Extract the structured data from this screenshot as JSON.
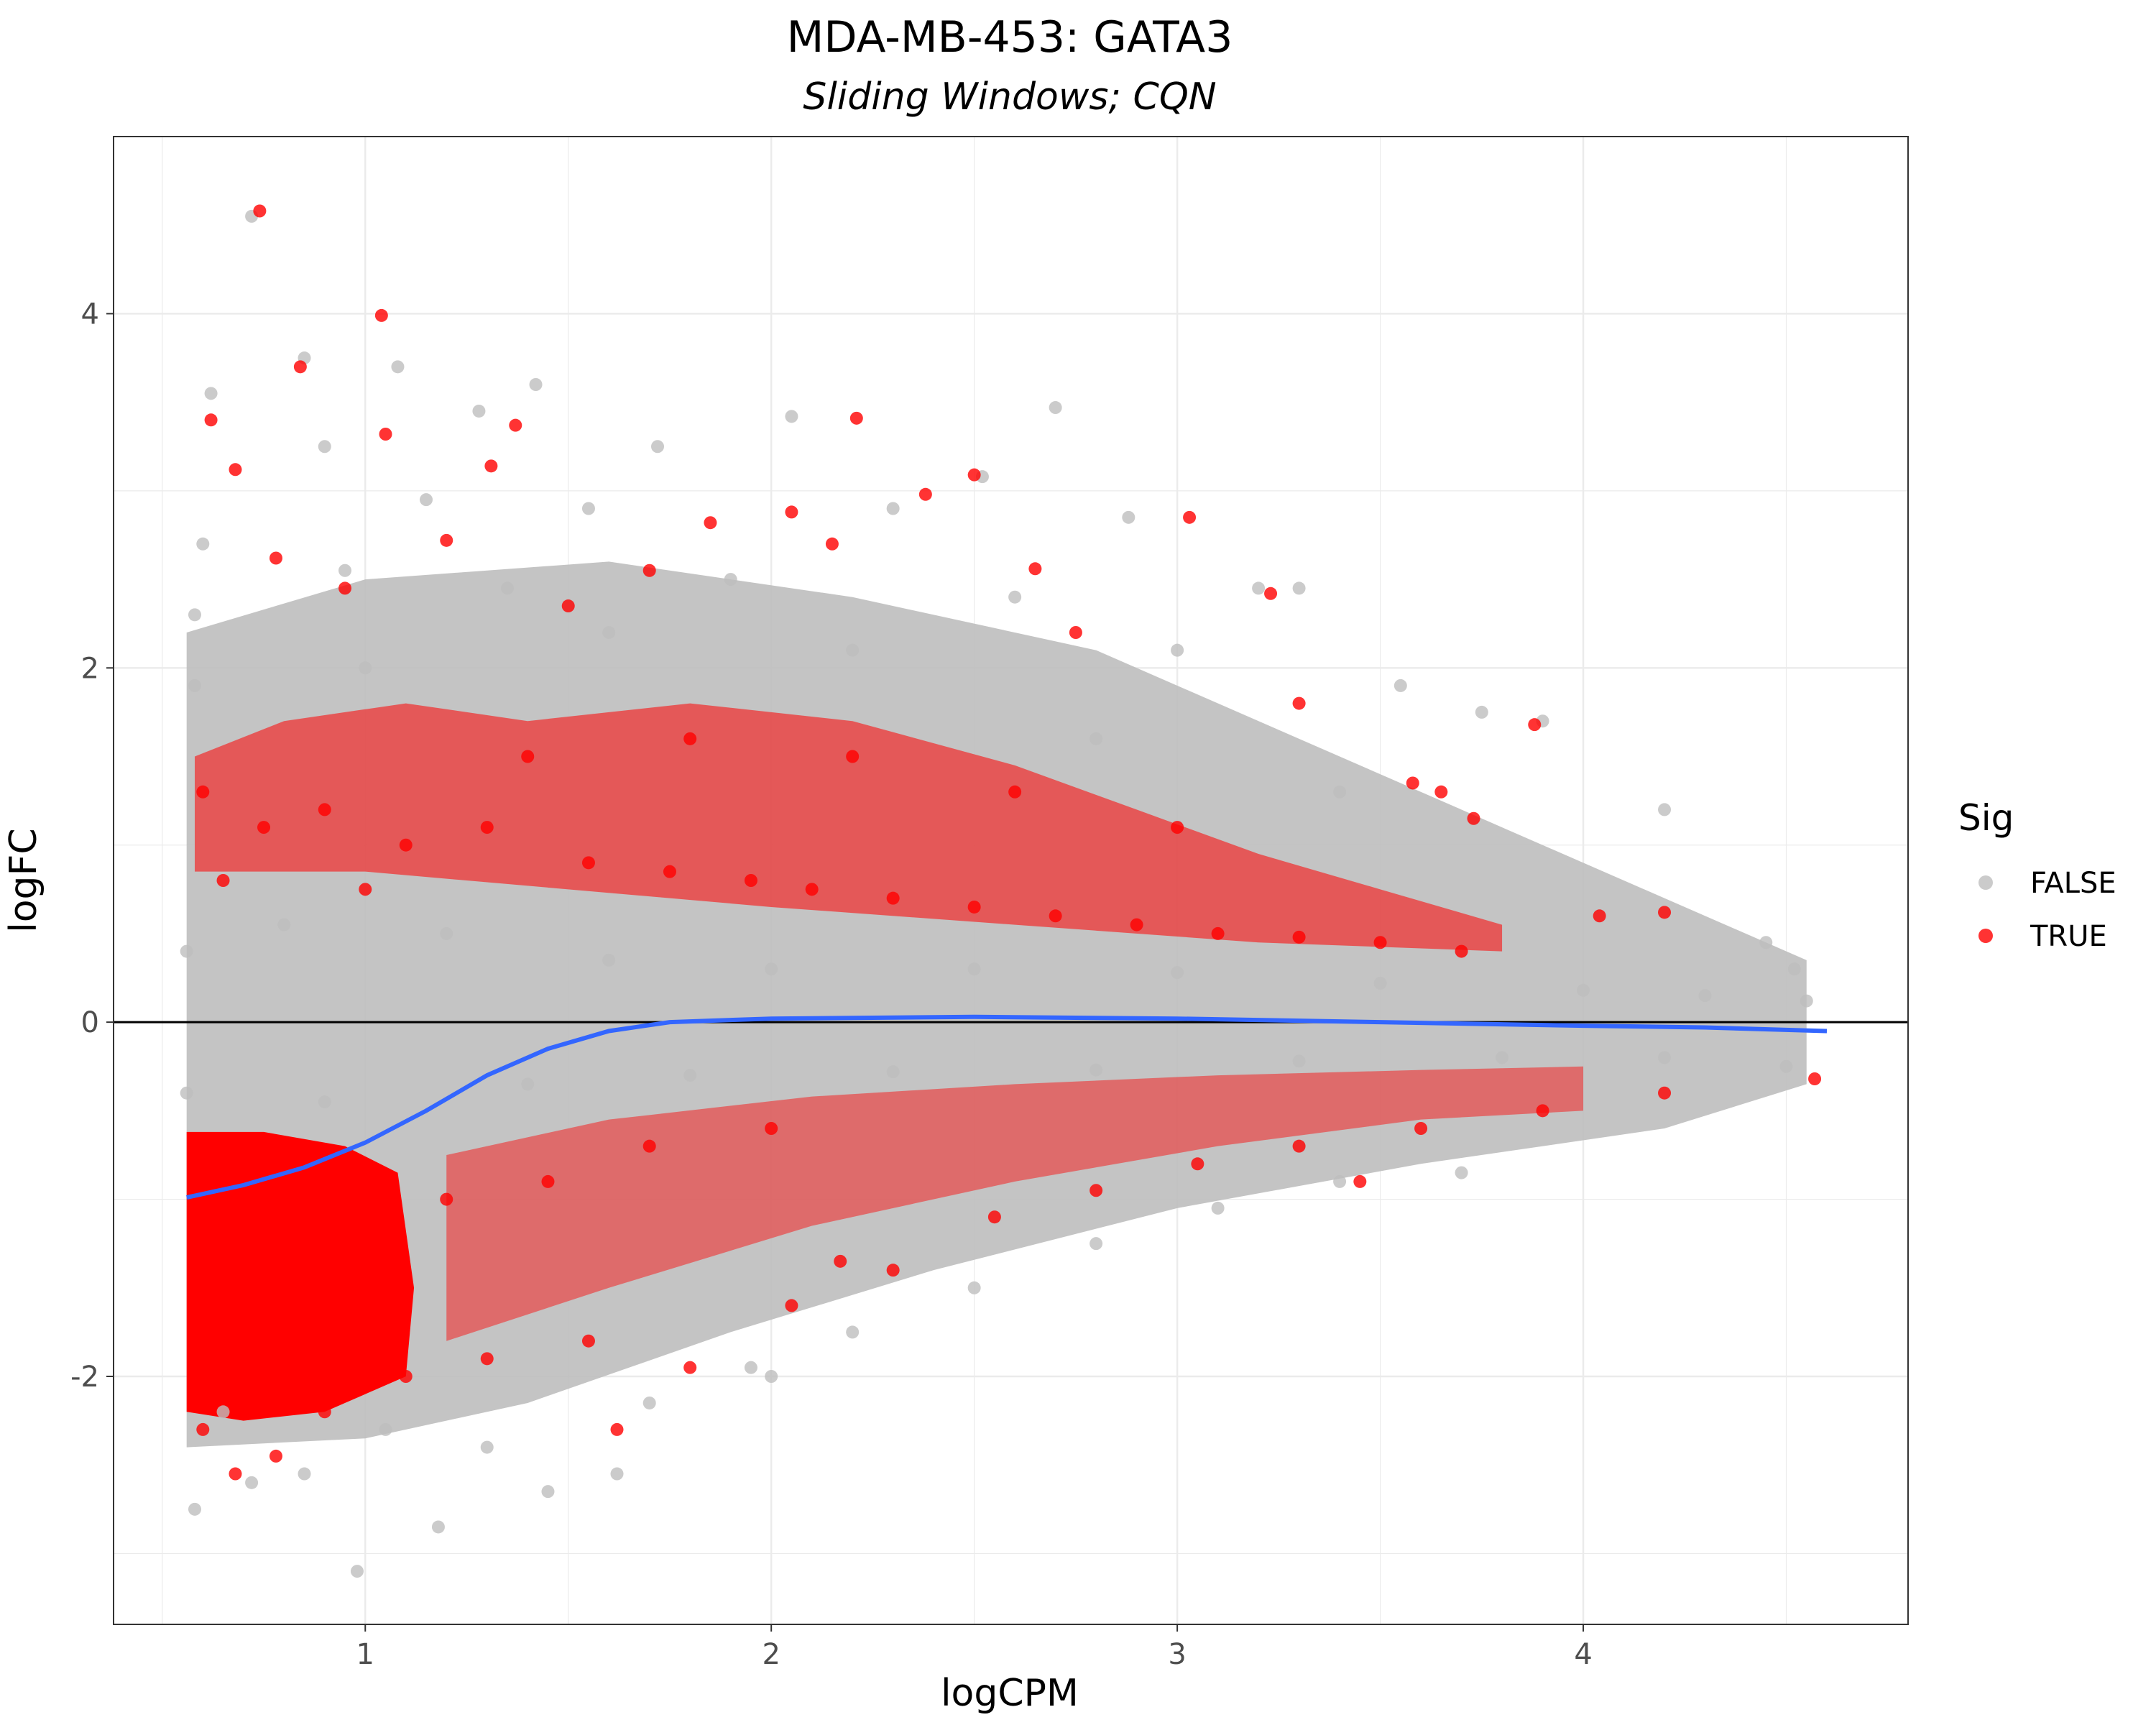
{
  "chart_data": {
    "type": "scatter",
    "title": "MDA-MB-453: GATA3",
    "subtitle": "Sliding Windows; CQN",
    "xlabel": "logCPM",
    "ylabel": "logFC",
    "xlim": [
      0.38,
      4.8
    ],
    "ylim": [
      -3.4,
      5.0
    ],
    "x_ticks": [
      1,
      2,
      3,
      4
    ],
    "x_tick_labels": [
      "1",
      "2",
      "3",
      "4"
    ],
    "y_ticks": [
      -2,
      0,
      2,
      4
    ],
    "y_tick_labels": [
      "-2",
      "0",
      "2",
      "4"
    ],
    "grid": true,
    "reference_line": {
      "y": 0,
      "color": "#000000"
    },
    "legend": {
      "title": "Sig",
      "position": "right",
      "entries": [
        {
          "label": "FALSE",
          "color": "#bebebe"
        },
        {
          "label": "TRUE",
          "color": "#ff0000"
        }
      ]
    },
    "series": [
      {
        "name": "FALSE",
        "color": "#bebebe",
        "points": [
          [
            0.72,
            4.55
          ],
          [
            1.08,
            3.7
          ],
          [
            0.85,
            3.75
          ],
          [
            1.42,
            3.6
          ],
          [
            2.7,
            3.47
          ],
          [
            2.05,
            3.42
          ],
          [
            0.62,
            3.55
          ],
          [
            1.28,
            3.45
          ],
          [
            0.9,
            3.25
          ],
          [
            1.72,
            3.25
          ],
          [
            2.52,
            3.08
          ],
          [
            2.88,
            2.85
          ],
          [
            0.6,
            2.7
          ],
          [
            1.15,
            2.95
          ],
          [
            1.55,
            2.9
          ],
          [
            2.3,
            2.9
          ],
          [
            3.2,
            2.45
          ],
          [
            3.3,
            2.45
          ],
          [
            0.58,
            2.3
          ],
          [
            0.95,
            2.55
          ],
          [
            1.35,
            2.45
          ],
          [
            1.9,
            2.5
          ],
          [
            2.6,
            2.4
          ],
          [
            3.0,
            2.1
          ],
          [
            3.55,
            1.9
          ],
          [
            3.75,
            1.75
          ],
          [
            3.9,
            1.7
          ],
          [
            4.2,
            1.2
          ],
          [
            4.45,
            0.45
          ],
          [
            4.52,
            0.3
          ],
          [
            0.58,
            1.9
          ],
          [
            1.0,
            2.0
          ],
          [
            1.6,
            2.2
          ],
          [
            2.2,
            2.1
          ],
          [
            2.8,
            1.6
          ],
          [
            3.4,
            1.3
          ],
          [
            0.56,
            0.4
          ],
          [
            0.8,
            0.55
          ],
          [
            1.2,
            0.5
          ],
          [
            1.6,
            0.35
          ],
          [
            2.0,
            0.3
          ],
          [
            2.5,
            0.3
          ],
          [
            3.0,
            0.28
          ],
          [
            3.5,
            0.22
          ],
          [
            4.0,
            0.18
          ],
          [
            4.3,
            0.15
          ],
          [
            4.55,
            0.12
          ],
          [
            0.56,
            -0.4
          ],
          [
            0.9,
            -0.45
          ],
          [
            1.4,
            -0.35
          ],
          [
            1.8,
            -0.3
          ],
          [
            2.3,
            -0.28
          ],
          [
            2.8,
            -0.27
          ],
          [
            3.3,
            -0.22
          ],
          [
            3.8,
            -0.2
          ],
          [
            4.2,
            -0.2
          ],
          [
            4.5,
            -0.25
          ],
          [
            0.58,
            -2.75
          ],
          [
            0.72,
            -2.6
          ],
          [
            0.85,
            -2.55
          ],
          [
            0.98,
            -3.1
          ],
          [
            1.18,
            -2.85
          ],
          [
            1.45,
            -2.65
          ],
          [
            1.62,
            -2.55
          ],
          [
            1.95,
            -1.95
          ],
          [
            2.2,
            -1.75
          ],
          [
            2.5,
            -1.5
          ],
          [
            2.8,
            -1.25
          ],
          [
            3.1,
            -1.05
          ],
          [
            3.4,
            -0.9
          ],
          [
            3.7,
            -0.85
          ],
          [
            1.05,
            -2.3
          ],
          [
            1.3,
            -2.4
          ],
          [
            0.65,
            -2.2
          ],
          [
            1.7,
            -2.15
          ],
          [
            2.0,
            -2.0
          ]
        ]
      },
      {
        "name": "TRUE",
        "color": "#ff0000",
        "points": [
          [
            0.74,
            4.58
          ],
          [
            1.04,
            3.99
          ],
          [
            0.84,
            3.7
          ],
          [
            0.62,
            3.4
          ],
          [
            1.37,
            3.37
          ],
          [
            2.21,
            3.41
          ],
          [
            0.68,
            3.12
          ],
          [
            1.05,
            3.32
          ],
          [
            1.31,
            3.14
          ],
          [
            2.5,
            3.09
          ],
          [
            2.38,
            2.98
          ],
          [
            3.03,
            2.85
          ],
          [
            0.78,
            2.62
          ],
          [
            1.2,
            2.72
          ],
          [
            1.85,
            2.82
          ],
          [
            2.05,
            2.88
          ],
          [
            2.65,
            2.56
          ],
          [
            3.23,
            2.42
          ],
          [
            1.7,
            2.55
          ],
          [
            2.15,
            2.7
          ],
          [
            0.95,
            2.45
          ],
          [
            1.5,
            2.35
          ],
          [
            2.75,
            2.2
          ],
          [
            3.3,
            1.8
          ],
          [
            3.88,
            1.68
          ],
          [
            3.58,
            1.35
          ],
          [
            3.65,
            1.3
          ],
          [
            3.73,
            1.15
          ],
          [
            4.2,
            0.62
          ],
          [
            4.04,
            0.6
          ],
          [
            0.6,
            1.3
          ],
          [
            0.75,
            1.1
          ],
          [
            0.9,
            1.2
          ],
          [
            1.1,
            1.0
          ],
          [
            1.3,
            1.1
          ],
          [
            1.55,
            0.9
          ],
          [
            1.75,
            0.85
          ],
          [
            1.95,
            0.8
          ],
          [
            2.1,
            0.75
          ],
          [
            2.3,
            0.7
          ],
          [
            2.5,
            0.65
          ],
          [
            2.7,
            0.6
          ],
          [
            2.9,
            0.55
          ],
          [
            3.1,
            0.5
          ],
          [
            3.3,
            0.48
          ],
          [
            3.5,
            0.45
          ],
          [
            3.7,
            0.4
          ],
          [
            0.65,
            0.8
          ],
          [
            1.0,
            0.75
          ],
          [
            1.4,
            1.5
          ],
          [
            1.8,
            1.6
          ],
          [
            2.2,
            1.5
          ],
          [
            2.6,
            1.3
          ],
          [
            3.0,
            1.1
          ],
          [
            0.6,
            -1.0
          ],
          [
            0.65,
            -1.5
          ],
          [
            0.7,
            -2.0
          ],
          [
            0.6,
            -2.3
          ],
          [
            0.68,
            -2.55
          ],
          [
            0.78,
            -2.45
          ],
          [
            0.9,
            -2.2
          ],
          [
            1.1,
            -2.0
          ],
          [
            1.3,
            -1.9
          ],
          [
            1.55,
            -1.8
          ],
          [
            1.8,
            -1.95
          ],
          [
            2.05,
            -1.6
          ],
          [
            2.3,
            -1.4
          ],
          [
            2.55,
            -1.1
          ],
          [
            2.8,
            -0.95
          ],
          [
            3.05,
            -0.8
          ],
          [
            3.3,
            -0.7
          ],
          [
            3.6,
            -0.6
          ],
          [
            3.9,
            -0.5
          ],
          [
            4.2,
            -0.4
          ],
          [
            4.57,
            -0.32
          ],
          [
            3.45,
            -0.9
          ],
          [
            1.62,
            -2.3
          ],
          [
            2.17,
            -1.35
          ],
          [
            0.8,
            -1.1
          ],
          [
            1.0,
            -1.3
          ],
          [
            1.2,
            -1.0
          ],
          [
            1.45,
            -0.9
          ],
          [
            1.7,
            -0.7
          ],
          [
            2.0,
            -0.6
          ]
        ]
      }
    ],
    "trend_line": {
      "color": "#3366ff",
      "points": [
        [
          0.56,
          -0.99
        ],
        [
          0.7,
          -0.92
        ],
        [
          0.85,
          -0.82
        ],
        [
          1.0,
          -0.68
        ],
        [
          1.15,
          -0.5
        ],
        [
          1.3,
          -0.3
        ],
        [
          1.45,
          -0.15
        ],
        [
          1.6,
          -0.05
        ],
        [
          1.75,
          0.0
        ],
        [
          2.0,
          0.02
        ],
        [
          2.5,
          0.03
        ],
        [
          3.0,
          0.02
        ],
        [
          3.5,
          0.0
        ],
        [
          4.0,
          -0.02
        ],
        [
          4.3,
          -0.03
        ],
        [
          4.6,
          -0.05
        ]
      ]
    }
  }
}
